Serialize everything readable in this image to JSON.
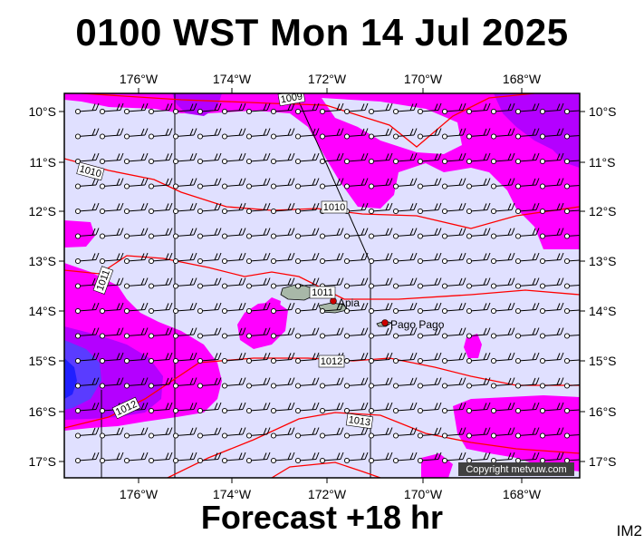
{
  "title": "0100 WST Mon 14 Jul 2025",
  "footer": "Forecast +18 hr",
  "image_code": "IM2",
  "copyright": "Copyright metvuw.com",
  "lon_labels": [
    "176°W",
    "174°W",
    "172°W",
    "170°W",
    "168°W"
  ],
  "lat_labels": [
    "10°S",
    "11°S",
    "12°S",
    "13°S",
    "14°S",
    "15°S",
    "16°S",
    "17°S"
  ],
  "isobar_labels": [
    "1009",
    "1010",
    "1010",
    "1011",
    "1011",
    "1012",
    "1012",
    "1013"
  ],
  "places": [
    "Apia",
    "Pago Pago"
  ],
  "colors": {
    "background": "#e0e0ff",
    "rain_light": "#ff00ff",
    "rain_medium": "#b400ff",
    "rain_heavy": "#5a3cff",
    "rain_very_heavy": "#2020ff",
    "isobar": "#ff0000",
    "land": "#a8b8a8"
  }
}
